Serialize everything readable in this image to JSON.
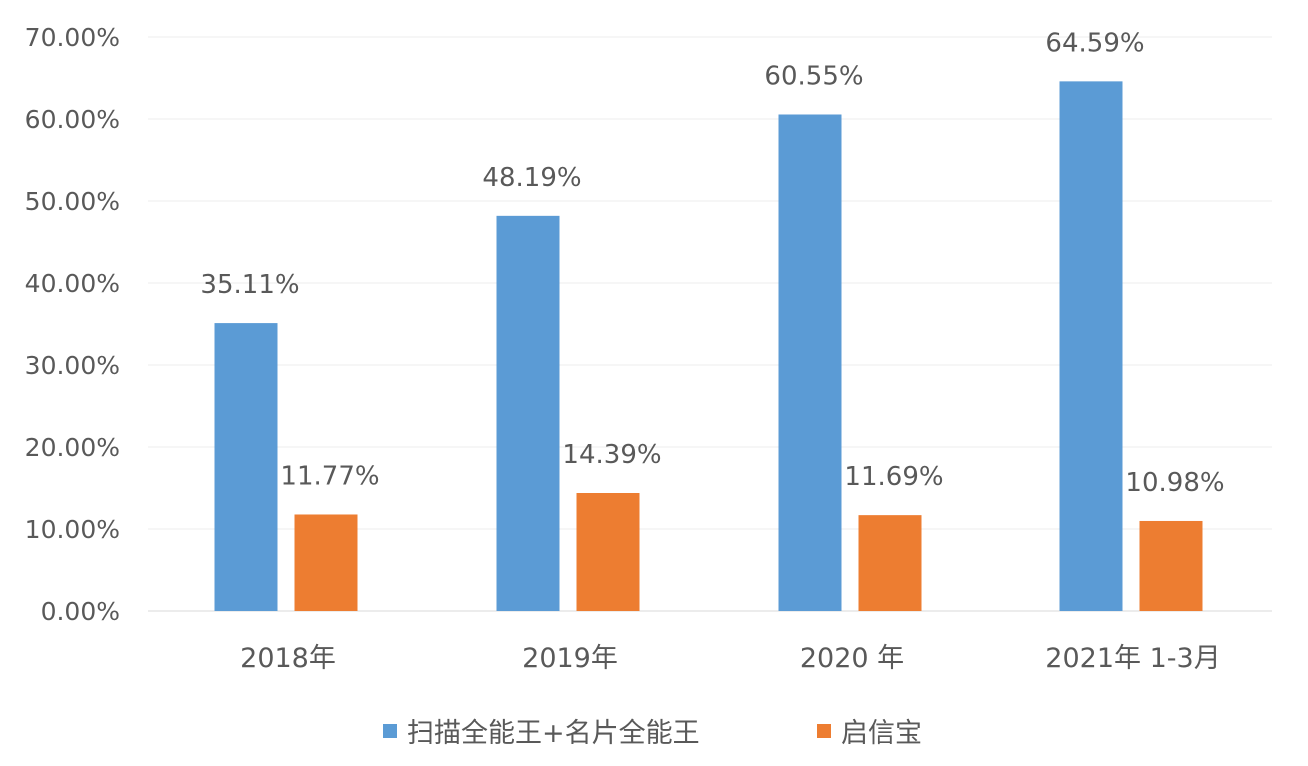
{
  "chart_data": {
    "type": "bar",
    "title": "",
    "xlabel": "",
    "ylabel": "",
    "categories": [
      "2018年",
      "2019年",
      "2020 年",
      "2021年 1-3月"
    ],
    "series": [
      {
        "name": "扫描全能王+名片全能王",
        "color": "#5B9BD5",
        "values": [
          35.11,
          48.19,
          60.55,
          64.59
        ],
        "labels": [
          "35.11%",
          "48.19%",
          "60.55%",
          "64.59%"
        ]
      },
      {
        "name": "启信宝",
        "color": "#ED7D31",
        "values": [
          11.77,
          14.39,
          11.69,
          10.98
        ],
        "labels": [
          "11.77%",
          "14.39%",
          "11.69%",
          "10.98%"
        ]
      }
    ],
    "ylim": [
      0,
      70
    ],
    "yticks": [
      "0.00%",
      "10.00%",
      "20.00%",
      "30.00%",
      "40.00%",
      "50.00%",
      "60.00%",
      "70.00%"
    ],
    "grid": true,
    "legend_position": "bottom"
  }
}
